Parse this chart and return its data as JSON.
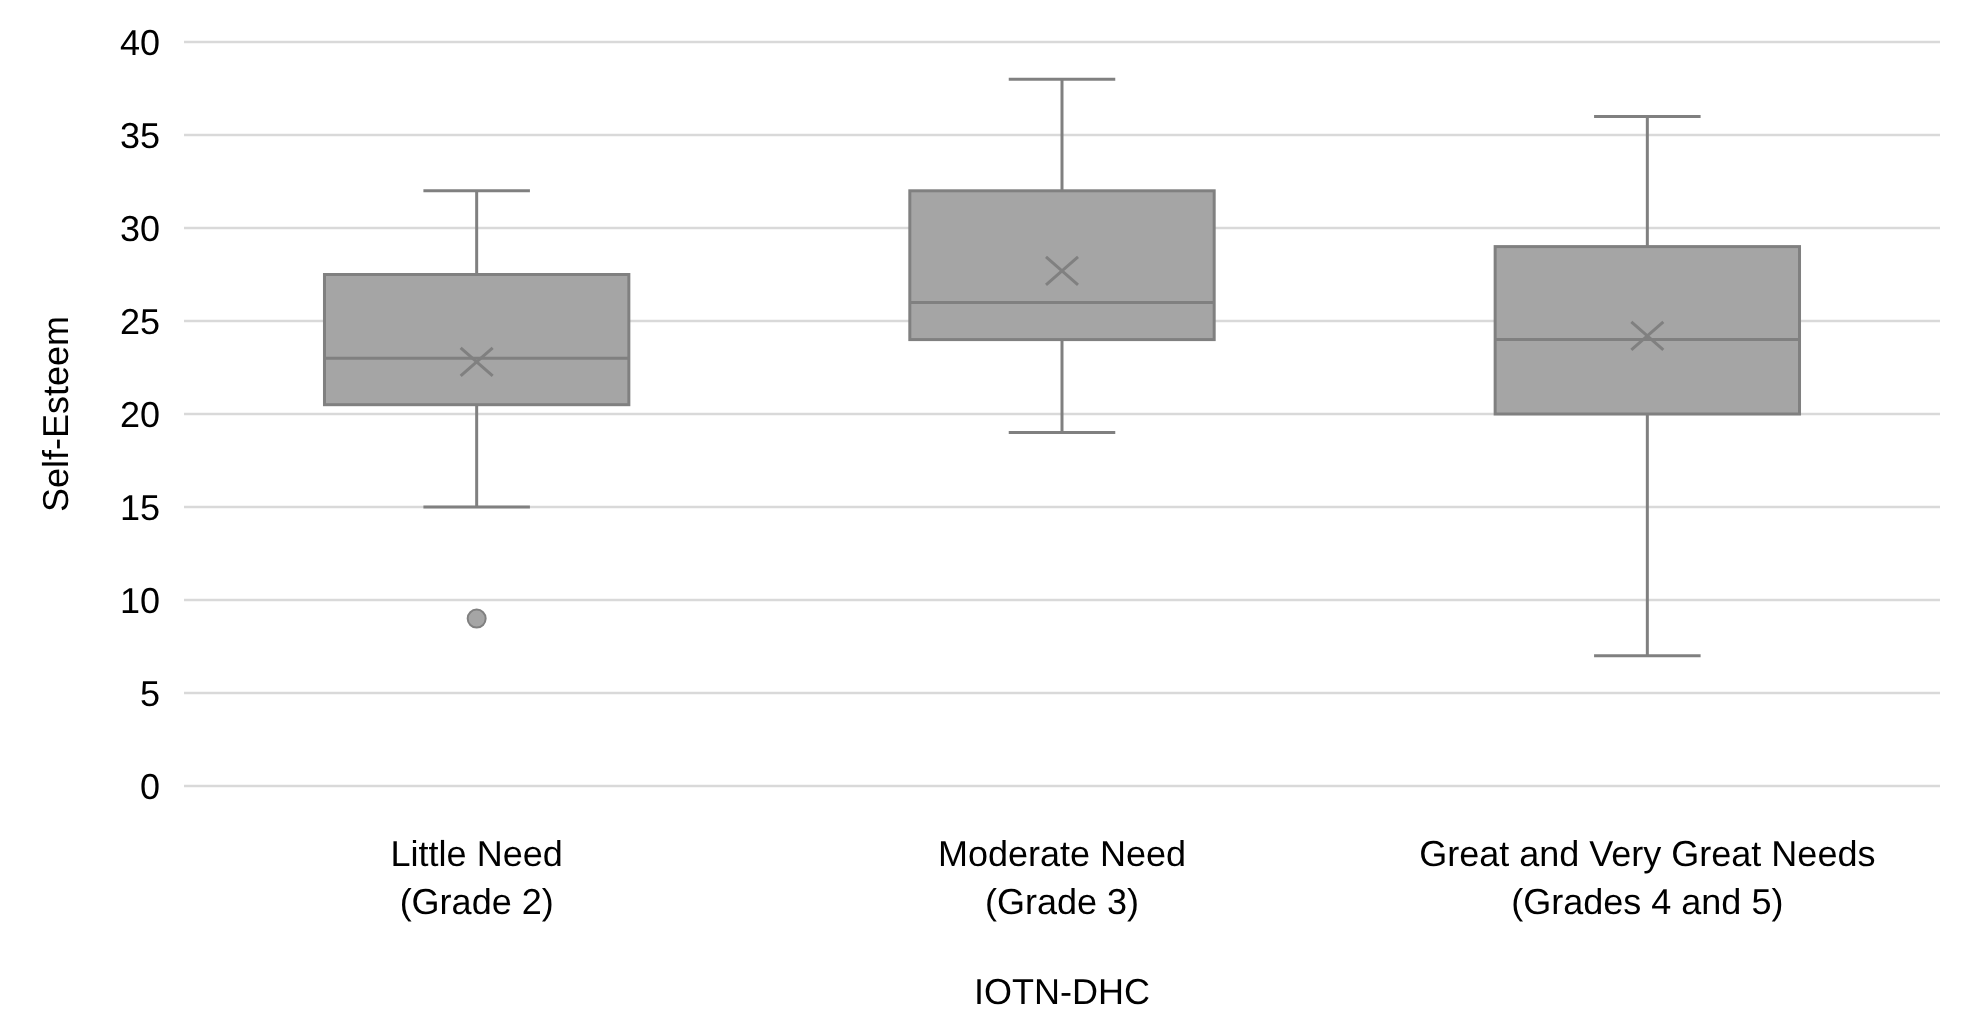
{
  "chart_data": {
    "type": "box",
    "xlabel": "IOTN-DHC",
    "ylabel": "Self-Esteem",
    "categories": [
      "Little Need\n(Grade 2)",
      "Moderate Need\n(Grade 3)",
      "Great and Very Great Needs\n(Grades 4 and 5)"
    ],
    "boxes": [
      {
        "low": 15,
        "q1": 20.5,
        "median": 23,
        "q3": 27.5,
        "high": 32,
        "mean": 22.8,
        "outliers": [
          9
        ]
      },
      {
        "low": 19,
        "q1": 24,
        "median": 26,
        "q3": 32,
        "high": 38,
        "mean": 27.7
      },
      {
        "low": 7,
        "q1": 20,
        "median": 24,
        "q3": 29,
        "high": 36,
        "mean": 24.2
      }
    ],
    "color": "#a5a5a5",
    "ylim": [
      0,
      40
    ],
    "yticks": [
      0,
      5,
      10,
      15,
      20,
      25,
      30,
      35,
      40
    ],
    "grid": "y"
  }
}
